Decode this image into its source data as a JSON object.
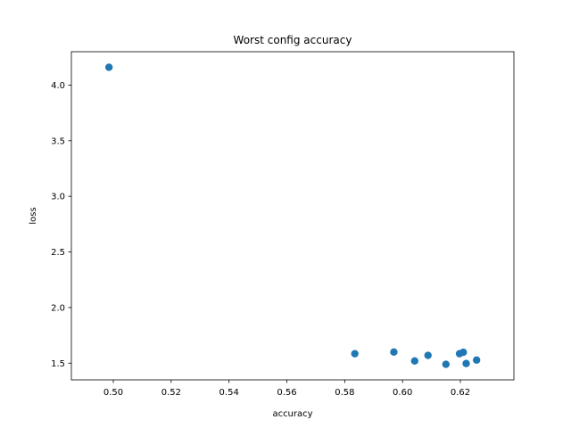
{
  "chart_data": {
    "type": "scatter",
    "title": "Worst config accuracy",
    "xlabel": "accuracy",
    "ylabel": "loss",
    "xlim": [
      0.4855,
      0.6385
    ],
    "ylim": [
      1.35,
      4.3
    ],
    "xticks": [
      0.5,
      0.52,
      0.54,
      0.56,
      0.58,
      0.6,
      0.62
    ],
    "xtick_labels": [
      "0.50",
      "0.52",
      "0.54",
      "0.56",
      "0.58",
      "0.60",
      "0.62"
    ],
    "yticks": [
      1.5,
      2.0,
      2.5,
      3.0,
      3.5,
      4.0
    ],
    "ytick_labels": [
      "1.5",
      "2.0",
      "2.5",
      "3.0",
      "3.5",
      "4.0"
    ],
    "grid": false,
    "color": "#1f77b4",
    "x": [
      0.4985,
      0.5835,
      0.597,
      0.6042,
      0.6088,
      0.615,
      0.6197,
      0.621,
      0.622,
      0.6256
    ],
    "y": [
      4.16,
      1.585,
      1.6,
      1.52,
      1.57,
      1.49,
      1.585,
      1.598,
      1.497,
      1.528
    ]
  }
}
